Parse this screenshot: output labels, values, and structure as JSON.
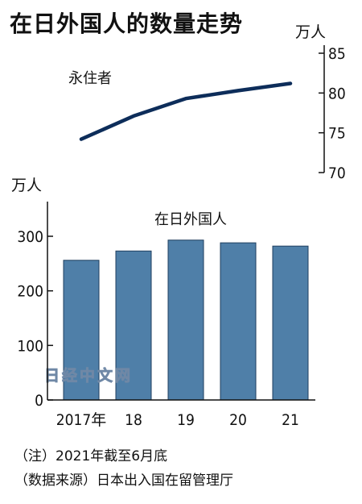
{
  "title": "在日外国人的数量走势",
  "notes": [
    "（注）2021年截至6月底",
    "（数据来源）日本出入国在留管理厅"
  ],
  "watermark": "日经中文网",
  "colors": {
    "line": "#0d2d5a",
    "bar": "#4f7fa8",
    "bar_edge": "#1f3f5f",
    "axis": "#111111"
  },
  "chart_data": [
    {
      "type": "line",
      "unit": "万人",
      "series": [
        {
          "name": "永住者",
          "values": [
            74.2,
            77.1,
            79.3,
            80.3,
            81.2
          ]
        }
      ],
      "x": [
        "2017年",
        "18",
        "19",
        "20",
        "21"
      ],
      "ylim": [
        70,
        85
      ],
      "yticks": [
        "85",
        "80",
        "75",
        "70"
      ],
      "axis_side": "right",
      "grid": false
    },
    {
      "type": "bar",
      "unit": "万人",
      "categories": [
        "2017年",
        "18",
        "19",
        "20",
        "21"
      ],
      "series": [
        {
          "name": "在日外国人",
          "values": [
            256,
            273,
            293,
            288,
            282
          ]
        }
      ],
      "ylim": [
        0,
        350
      ],
      "yticks": [
        "300",
        "200",
        "100",
        "0"
      ],
      "axis_side": "left",
      "grid": false
    }
  ]
}
